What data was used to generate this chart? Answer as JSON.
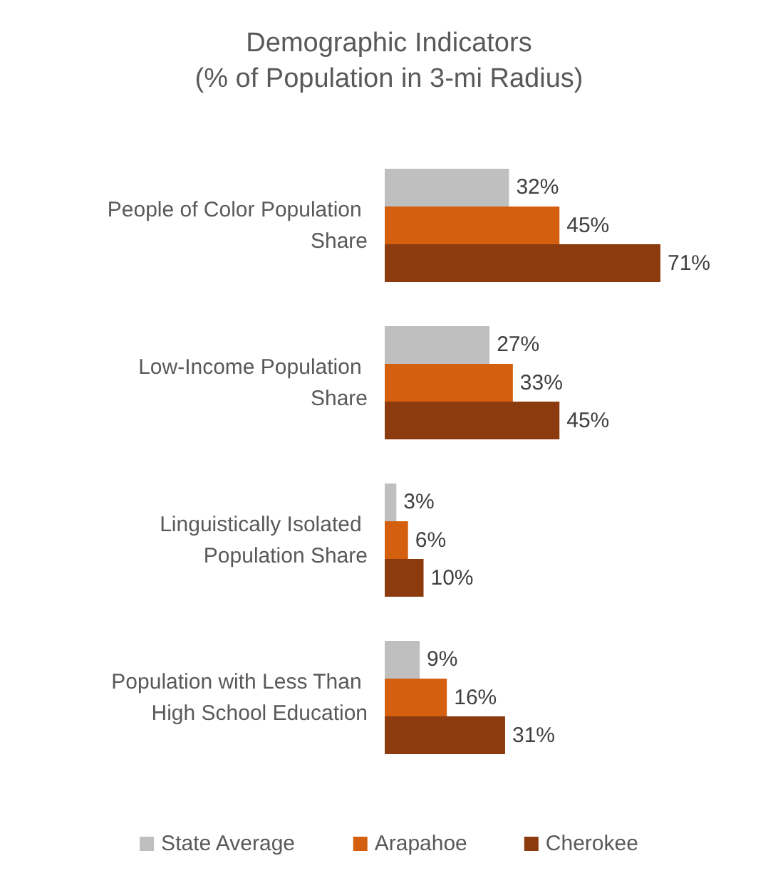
{
  "chart_data": {
    "type": "bar",
    "orientation": "horizontal",
    "title": "Demographic Indicators",
    "subtitle": "(% of Population in 3-mi Radius)",
    "categories": [
      "People of Color Population Share",
      "Low-Income Population Share",
      "Linguistically Isolated Population Share",
      "Population with Less Than High School Education"
    ],
    "series": [
      {
        "name": "State Average",
        "color": "#bfbfbf",
        "values": [
          32,
          27,
          3,
          9
        ],
        "value_labels": [
          "32%",
          "27%",
          "3%",
          "9%"
        ]
      },
      {
        "name": "Arapahoe",
        "color": "#d4600f",
        "values": [
          45,
          33,
          6,
          16
        ],
        "value_labels": [
          "45%",
          "33%",
          "6%",
          "16%"
        ]
      },
      {
        "name": "Cherokee",
        "color": "#8c3b0e",
        "values": [
          71,
          45,
          10,
          31
        ],
        "value_labels": [
          "71%",
          "45%",
          "10%",
          "31%"
        ]
      }
    ],
    "tick_labels": "y",
    "legend": "bottom"
  }
}
